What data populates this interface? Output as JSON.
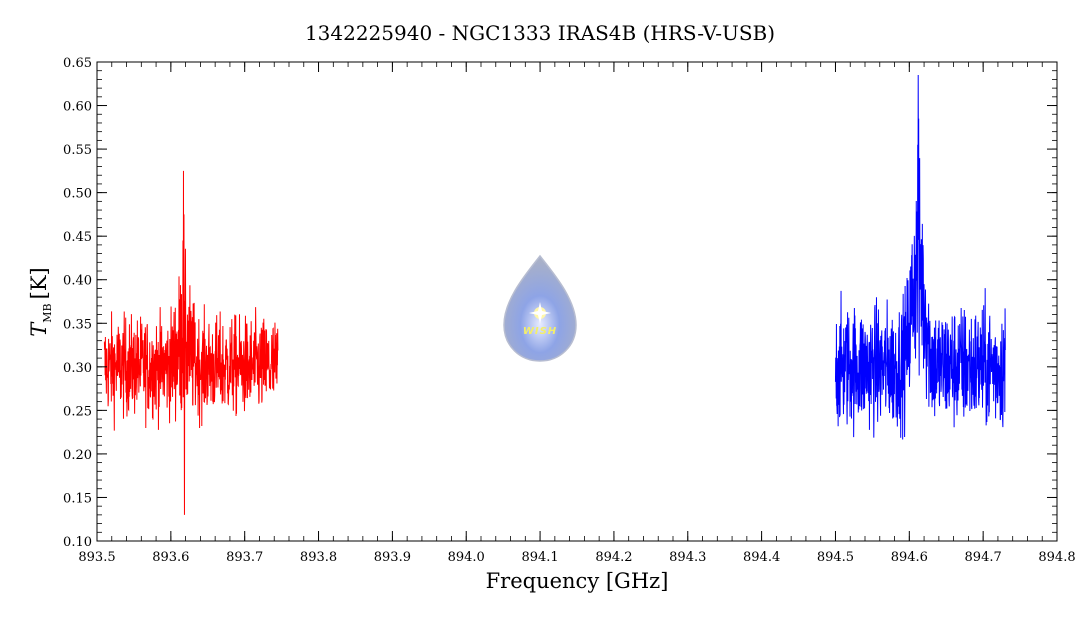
{
  "chart_data": {
    "type": "line",
    "title": "1342225940 - NGC1333 IRAS4B (HRS-V-USB)",
    "xlabel": "Frequency [GHz]",
    "ylabel": {
      "main": "T",
      "sub": "MB",
      "unit": "[K]"
    },
    "xlim": [
      893.5,
      894.8
    ],
    "ylim": [
      0.1,
      0.65
    ],
    "x_ticks": [
      "893.5",
      "893.6",
      "893.7",
      "893.8",
      "893.9",
      "894.0",
      "894.1",
      "894.2",
      "894.3",
      "894.4",
      "894.5",
      "894.6",
      "894.7",
      "894.8"
    ],
    "y_ticks": [
      "0.10",
      "0.15",
      "0.20",
      "0.25",
      "0.30",
      "0.35",
      "0.40",
      "0.45",
      "0.50",
      "0.55",
      "0.60",
      "0.65"
    ],
    "grid": false,
    "series": [
      {
        "color": "#ff0000",
        "x_range": [
          893.51,
          893.745
        ],
        "baseline": 0.3,
        "noise_amplitude": 0.04,
        "features": [
          {
            "x": 893.617,
            "y_max": 0.525,
            "y_min": 0.13
          }
        ]
      },
      {
        "color": "#0000ff",
        "x_range": [
          894.5,
          894.73
        ],
        "baseline": 0.3,
        "noise_amplitude": 0.05,
        "features": [
          {
            "x": 894.612,
            "y_max": 0.635,
            "y_min": 0.29
          }
        ]
      }
    ]
  },
  "logo": {
    "text": "WISH"
  }
}
